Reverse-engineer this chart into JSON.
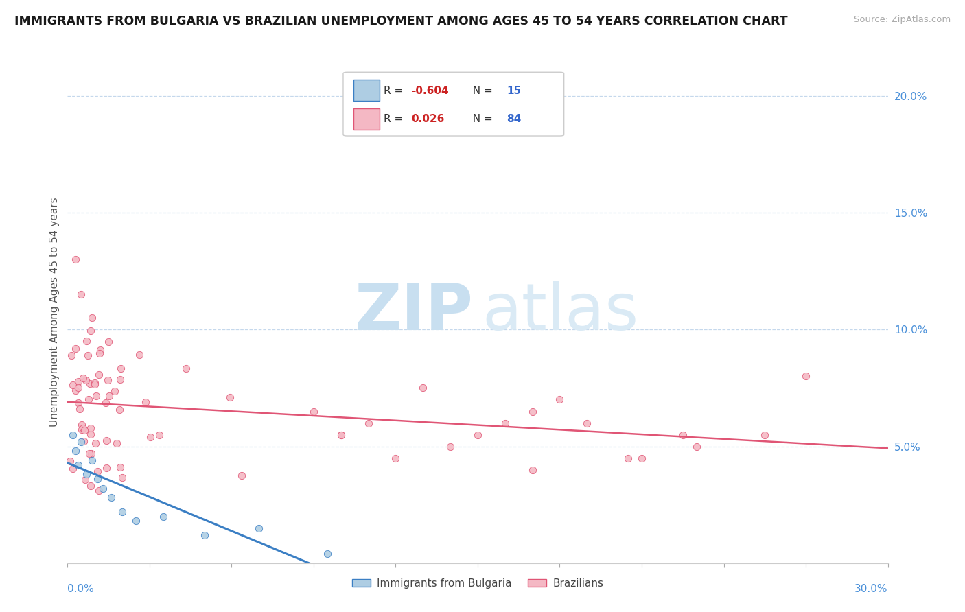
{
  "title": "IMMIGRANTS FROM BULGARIA VS BRAZILIAN UNEMPLOYMENT AMONG AGES 45 TO 54 YEARS CORRELATION CHART",
  "source": "Source: ZipAtlas.com",
  "ylabel": "Unemployment Among Ages 45 to 54 years",
  "x_min": 0.0,
  "x_max": 0.3,
  "y_min": 0.0,
  "y_max": 0.215,
  "ytick_vals": [
    0.05,
    0.1,
    0.15,
    0.2
  ],
  "ytick_labels": [
    "5.0%",
    "10.0%",
    "15.0%",
    "20.0%"
  ],
  "color_bulgaria": "#aecde3",
  "color_brazil": "#f4b8c4",
  "trendline_bulgaria": "#3b7fc4",
  "trendline_brazil": "#e05575",
  "watermark_zip": "ZIP",
  "watermark_atlas": "atlas",
  "watermark_color": "#ddeef8",
  "legend_items": [
    {
      "R": "-0.604",
      "N": "15",
      "color": "#aecde3",
      "edge": "#3b7fc4"
    },
    {
      "R": "0.026",
      "N": "84",
      "color": "#f4b8c4",
      "edge": "#e05575"
    }
  ],
  "bottom_legend": [
    "Immigrants from Bulgaria",
    "Brazilians"
  ]
}
